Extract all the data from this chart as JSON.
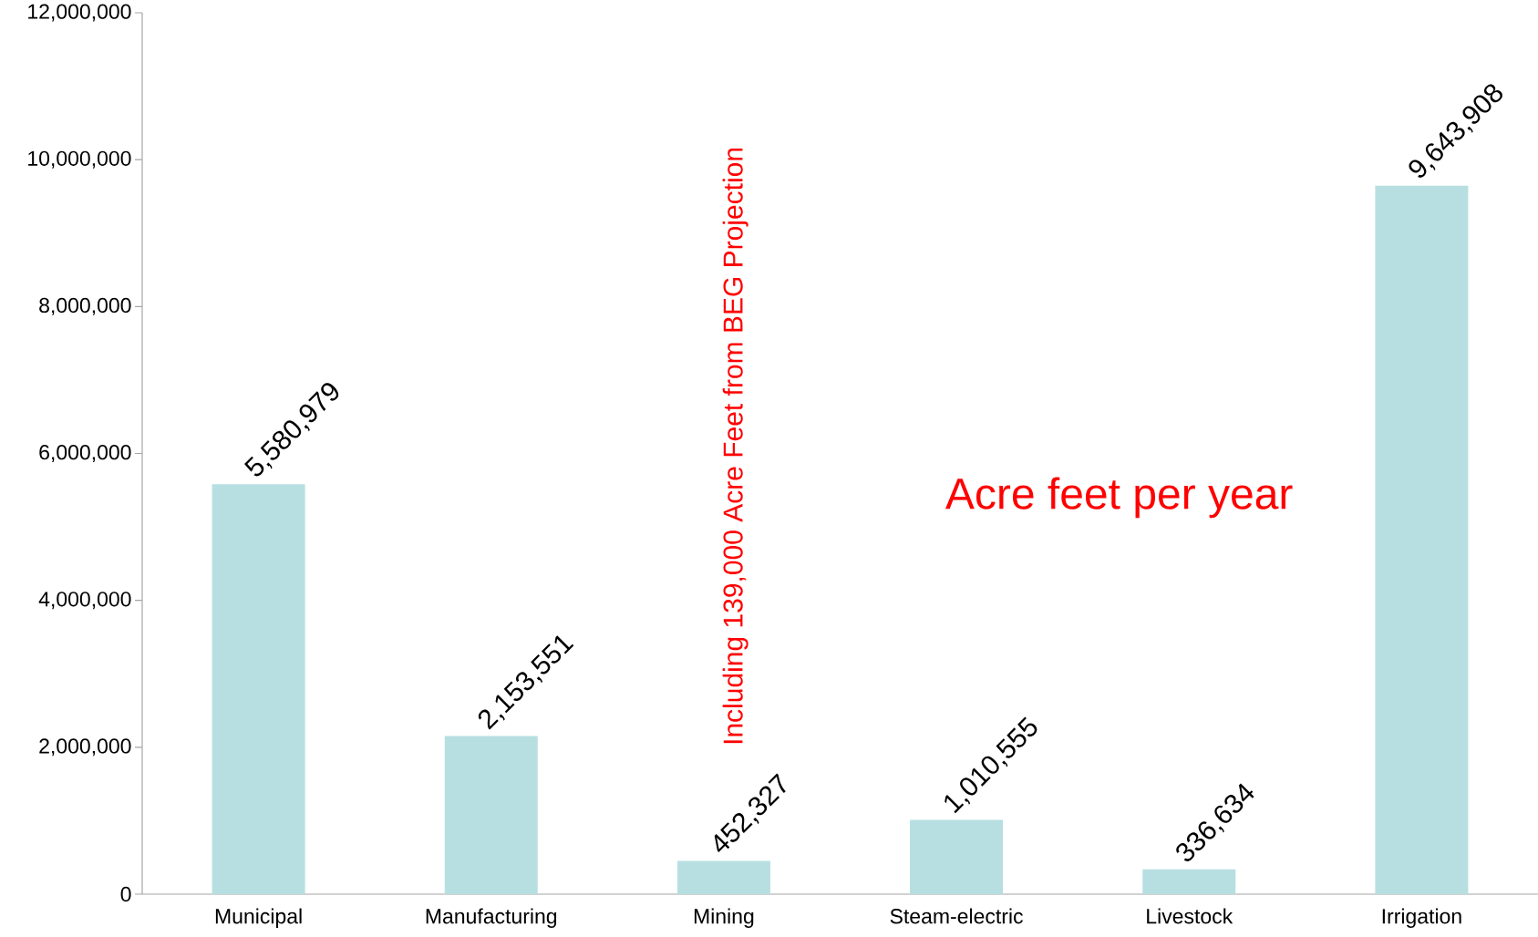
{
  "chart_data": {
    "type": "bar",
    "categories": [
      "Municipal",
      "Manufacturing",
      "Mining",
      "Steam-electric",
      "Livestock",
      "Irrigation"
    ],
    "values": [
      5580979,
      2153551,
      452327,
      1010555,
      336634,
      9643908
    ],
    "value_labels": [
      "5,580,979",
      "2,153,551",
      "452,327",
      "1,010,555",
      "336,634",
      "9,643,908"
    ],
    "color": "#b7dfe1",
    "ylim": [
      0,
      12000000
    ],
    "yticks": [
      {
        "value": 0,
        "label": "0"
      },
      {
        "value": 2000000,
        "label": "2,000,000"
      },
      {
        "value": 4000000,
        "label": "4,000,000"
      },
      {
        "value": 6000000,
        "label": "6,000,000"
      },
      {
        "value": 8000000,
        "label": "8,000,000"
      },
      {
        "value": 10000000,
        "label": "10,000,000"
      },
      {
        "value": 12000000,
        "label": "12,000,000"
      }
    ],
    "grid": false,
    "annotations": [
      "Acre feet per year",
      "Including 139,000 Acre Feet from BEG Projection"
    ]
  }
}
